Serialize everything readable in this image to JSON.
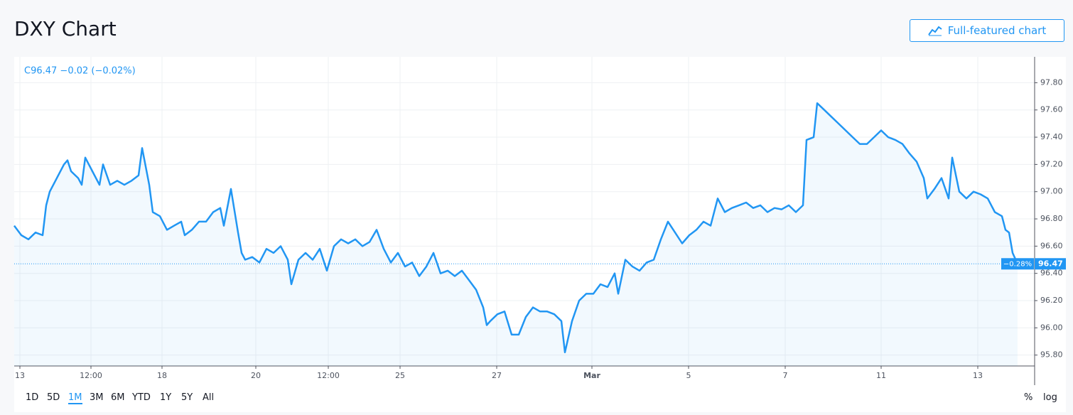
{
  "header": {
    "title": "DXY Chart",
    "button": "Full-featured chart"
  },
  "chart_data": {
    "type": "line",
    "legend": "C96.47  −0.02 (−0.02%)",
    "xlim": [
      0,
      1436
    ],
    "ylim": [
      95.72,
      97.99
    ],
    "xticks": [
      {
        "value": 8,
        "label": "13"
      },
      {
        "value": 108,
        "label": "12:00"
      },
      {
        "value": 208,
        "label": "18"
      },
      {
        "value": 340,
        "label": "20"
      },
      {
        "value": 442,
        "label": "12:00"
      },
      {
        "value": 543,
        "label": "25"
      },
      {
        "value": 679,
        "label": "27"
      },
      {
        "value": 813,
        "label": "Mar"
      },
      {
        "value": 949,
        "label": "5"
      },
      {
        "value": 1085,
        "label": "7"
      },
      {
        "value": 1220,
        "label": "11"
      },
      {
        "value": 1356,
        "label": "13"
      }
    ],
    "yticks": [
      {
        "value": 95.8,
        "label": "95.80"
      },
      {
        "value": 96.0,
        "label": "96.00"
      },
      {
        "value": 96.2,
        "label": "96.20"
      },
      {
        "value": 96.4,
        "label": "96.40"
      },
      {
        "value": 96.6,
        "label": "96.60"
      },
      {
        "value": 96.8,
        "label": "96.80"
      },
      {
        "value": 97.0,
        "label": "97.00"
      },
      {
        "value": 97.2,
        "label": "97.20"
      },
      {
        "value": 97.4,
        "label": "97.40"
      },
      {
        "value": 97.6,
        "label": "97.60"
      },
      {
        "value": 97.8,
        "label": "97.80"
      }
    ],
    "grid": true,
    "series": [
      {
        "name": "DXY",
        "color": "#2196f3",
        "x": [
          0,
          10,
          20,
          30,
          40,
          45,
          50,
          60,
          70,
          75,
          80,
          90,
          95,
          100,
          110,
          120,
          125,
          135,
          145,
          155,
          165,
          175,
          180,
          190,
          195,
          205,
          215,
          225,
          235,
          240,
          250,
          260,
          270,
          280,
          290,
          295,
          305,
          315,
          320,
          325,
          335,
          345,
          355,
          365,
          375,
          385,
          390,
          400,
          410,
          420,
          430,
          440,
          450,
          460,
          470,
          480,
          490,
          500,
          510,
          520,
          530,
          540,
          550,
          560,
          570,
          580,
          590,
          600,
          610,
          620,
          630,
          640,
          650,
          660,
          665,
          670,
          680,
          690,
          700,
          710,
          720,
          730,
          740,
          750,
          760,
          770,
          775,
          785,
          795,
          805,
          815,
          825,
          835,
          845,
          850,
          860,
          870,
          880,
          890,
          900,
          910,
          920,
          930,
          940,
          950,
          960,
          970,
          980,
          990,
          1000,
          1010,
          1020,
          1030,
          1040,
          1050,
          1060,
          1070,
          1080,
          1090,
          1100,
          1110,
          1115,
          1125,
          1130,
          1140,
          1150,
          1160,
          1170,
          1180,
          1190,
          1200,
          1210,
          1220,
          1230,
          1240,
          1250,
          1260,
          1270,
          1280,
          1285,
          1295,
          1305,
          1315,
          1320,
          1330,
          1340,
          1350,
          1360,
          1370,
          1380,
          1390,
          1395,
          1400,
          1405,
          1412
        ],
        "values": [
          96.75,
          96.68,
          96.65,
          96.7,
          96.68,
          96.9,
          97.0,
          97.1,
          97.2,
          97.23,
          97.15,
          97.1,
          97.05,
          97.25,
          97.15,
          97.05,
          97.2,
          97.05,
          97.08,
          97.05,
          97.08,
          97.12,
          97.32,
          97.05,
          96.85,
          96.82,
          96.72,
          96.75,
          96.78,
          96.68,
          96.72,
          96.78,
          96.78,
          96.85,
          96.88,
          96.75,
          97.02,
          96.7,
          96.55,
          96.5,
          96.52,
          96.48,
          96.58,
          96.55,
          96.6,
          96.5,
          96.32,
          96.5,
          96.55,
          96.5,
          96.58,
          96.42,
          96.6,
          96.65,
          96.62,
          96.65,
          96.6,
          96.63,
          96.72,
          96.58,
          96.48,
          96.55,
          96.45,
          96.48,
          96.38,
          96.45,
          96.55,
          96.4,
          96.42,
          96.38,
          96.42,
          96.35,
          96.28,
          96.15,
          96.02,
          96.05,
          96.1,
          96.12,
          95.95,
          95.95,
          96.08,
          96.15,
          96.12,
          96.12,
          96.1,
          96.05,
          95.82,
          96.05,
          96.2,
          96.25,
          96.25,
          96.32,
          96.3,
          96.4,
          96.25,
          96.5,
          96.45,
          96.42,
          96.48,
          96.5,
          96.65,
          96.78,
          96.7,
          96.62,
          96.68,
          96.72,
          96.78,
          96.75,
          96.95,
          96.85,
          96.88,
          96.9,
          96.92,
          96.88,
          96.9,
          96.85,
          96.88,
          96.87,
          96.9,
          96.85,
          96.9,
          97.38,
          97.4,
          97.65,
          97.6,
          97.55,
          97.5,
          97.45,
          97.4,
          97.35,
          97.35,
          97.4,
          97.45,
          97.4,
          97.38,
          97.35,
          97.28,
          97.22,
          97.1,
          96.95,
          97.02,
          97.1,
          96.95,
          97.25,
          97.0,
          96.95,
          97.0,
          96.98,
          96.95,
          96.85,
          96.82,
          96.72,
          96.7,
          96.55,
          96.47
        ]
      }
    ],
    "price_badge": {
      "change": "−0.28%",
      "price": "96.47"
    },
    "ranges": [
      "1D",
      "5D",
      "1M",
      "3M",
      "6M",
      "YTD",
      "1Y",
      "5Y",
      "All"
    ],
    "active_range": "1M",
    "scale_buttons": [
      "%",
      "log"
    ]
  }
}
